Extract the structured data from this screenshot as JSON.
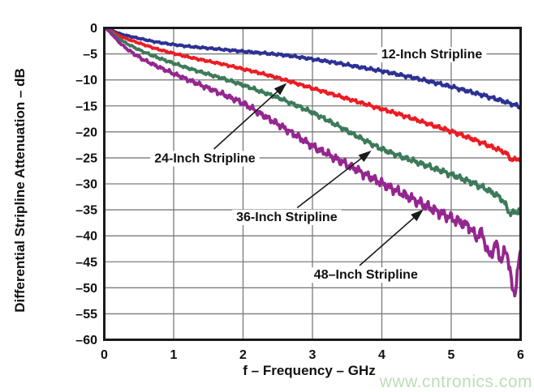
{
  "page": {
    "watermark_text": "www.cntronics.com",
    "watermark_color": "#b3dcae",
    "background": "#ffffff"
  },
  "chart_data": {
    "type": "line",
    "title": "",
    "xlabel": "f – Frequency – GHz",
    "ylabel": "Differential Stripline Attenuation – dB",
    "xlim": [
      0,
      6
    ],
    "ylim": [
      -60,
      0
    ],
    "grid": true,
    "grid_color": "#7b7b7b",
    "frame_color": "#1a1a1a",
    "x_ticks": [
      0,
      1,
      2,
      3,
      4,
      5,
      6
    ],
    "x_tick_labels": [
      "0",
      "1",
      "2",
      "3",
      "4",
      "5",
      "6"
    ],
    "y_ticks": [
      0,
      -5,
      -10,
      -15,
      -20,
      -25,
      -30,
      -35,
      -40,
      -45,
      -50,
      -55,
      -60
    ],
    "y_tick_labels": [
      "0",
      "–5",
      "–10",
      "–15",
      "–20",
      "–25",
      "–30",
      "–35",
      "–40",
      "–45",
      "–50",
      "–55",
      "–60"
    ],
    "x": [
      0,
      0.25,
      0.5,
      0.75,
      1,
      1.25,
      1.5,
      1.75,
      2,
      2.25,
      2.5,
      2.75,
      3,
      3.25,
      3.5,
      3.75,
      4,
      4.25,
      4.5,
      4.75,
      5,
      5.25,
      5.5,
      5.75,
      6
    ],
    "series": [
      {
        "name": "12-Inch Stripline",
        "color": "#2d3194",
        "values": [
          0,
          -1.2,
          -2.0,
          -2.7,
          -3.2,
          -3.6,
          -3.9,
          -4.2,
          -4.5,
          -4.8,
          -5.1,
          -5.5,
          -6.0,
          -6.5,
          -7.1,
          -7.7,
          -8.3,
          -9.0,
          -9.7,
          -10.5,
          -11.3,
          -12.2,
          -13.1,
          -14.1,
          -15.1
        ],
        "noise": [
          0.15,
          0.5
        ],
        "spikes": []
      },
      {
        "name": "24-Inch Stripline",
        "color": "#ec1c24",
        "values": [
          0,
          -1.7,
          -2.9,
          -4.0,
          -4.9,
          -5.7,
          -6.4,
          -7.1,
          -7.9,
          -8.7,
          -9.6,
          -10.6,
          -11.6,
          -12.6,
          -13.6,
          -14.6,
          -15.6,
          -16.6,
          -17.7,
          -18.8,
          -19.9,
          -21.1,
          -22.4,
          -23.8,
          -25.2
        ],
        "noise": [
          0.15,
          0.55
        ],
        "spikes": [
          {
            "x": 5.88,
            "d": -0.8,
            "w": 0.06
          }
        ]
      },
      {
        "name": "36-Inch Stripline",
        "color": "#3c7a5a",
        "values": [
          0,
          -2.4,
          -4.2,
          -5.6,
          -6.8,
          -7.9,
          -8.9,
          -9.9,
          -11.0,
          -12.2,
          -13.4,
          -14.8,
          -16.3,
          -18.0,
          -19.8,
          -21.6,
          -23.3,
          -24.6,
          -25.8,
          -27.0,
          -28.2,
          -29.5,
          -31.0,
          -33.0,
          -35.3
        ],
        "noise": [
          0.2,
          0.8
        ],
        "spikes": [
          {
            "x": 5.85,
            "d": -1.6,
            "w": 0.08
          }
        ]
      },
      {
        "name": "48–Inch Stripline",
        "color": "#94278f",
        "values": [
          0,
          -3.2,
          -5.6,
          -7.3,
          -8.8,
          -10.2,
          -11.6,
          -13.0,
          -14.5,
          -16.5,
          -18.5,
          -20.6,
          -22.7,
          -24.5,
          -26.3,
          -28.1,
          -29.9,
          -31.6,
          -33.3,
          -35.0,
          -36.6,
          -38.1,
          -39.6,
          -41.1,
          -42.4
        ],
        "noise": [
          0.25,
          1.6
        ],
        "spikes": [
          {
            "x": 5.35,
            "d": -1.5,
            "w": 0.05
          },
          {
            "x": 5.55,
            "d": -4.0,
            "w": 0.07
          },
          {
            "x": 5.72,
            "d": -3.5,
            "w": 0.06
          },
          {
            "x": 5.9,
            "d": -9.0,
            "w": 0.07
          }
        ]
      }
    ],
    "annotations": [
      {
        "text": "12-Inch Stripline",
        "x": 4.72,
        "y": -5.0
      },
      {
        "text": "24-Inch Stripline",
        "x": 1.45,
        "y": -25.0,
        "arrow": {
          "x1": 1.58,
          "y1": -23.3,
          "x2": 2.63,
          "y2": -10.6
        }
      },
      {
        "text": "36-Inch Stripline",
        "x": 2.63,
        "y": -36.3,
        "arrow": {
          "x1": 2.78,
          "y1": -34.6,
          "x2": 3.85,
          "y2": -23.6
        }
      },
      {
        "text": "48–Inch Stripline",
        "x": 3.77,
        "y": -47.4,
        "arrow": {
          "x1": 3.68,
          "y1": -45.7,
          "x2": 4.6,
          "y2": -34.9
        }
      }
    ]
  }
}
